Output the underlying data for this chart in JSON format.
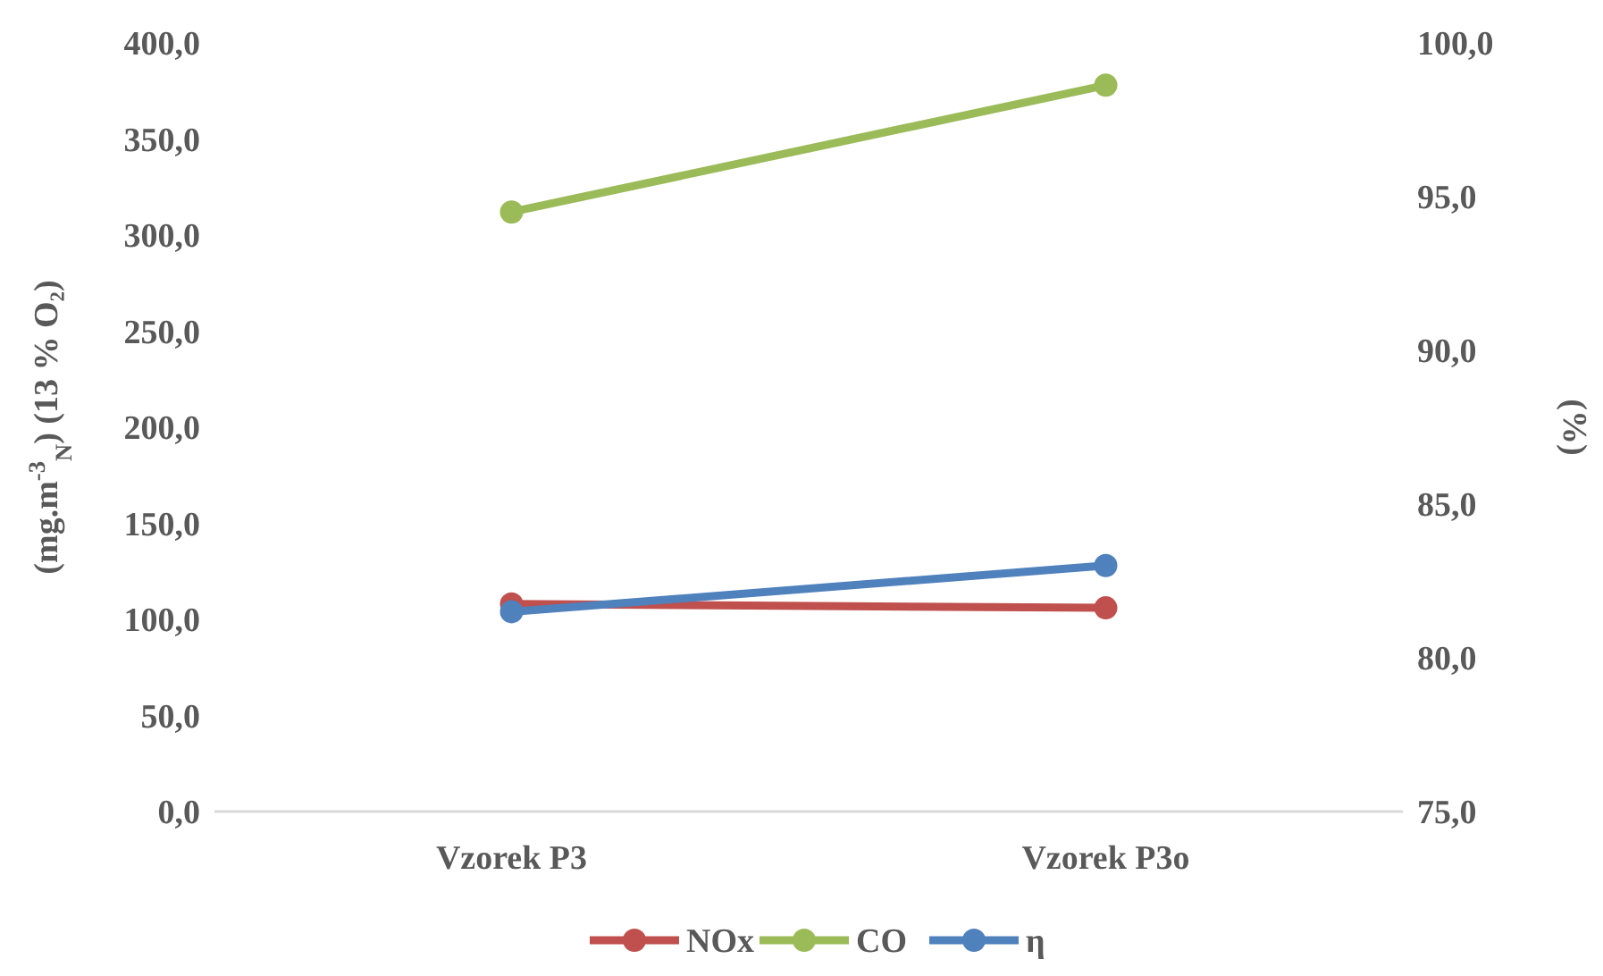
{
  "chart_data": {
    "type": "line",
    "categories": [
      "Vzorek P3",
      "Vzorek P3o"
    ],
    "ylabel": "(mg.m$^{-3}$$_{N}$) (13 % O₂)",
    "y2label": "(%)",
    "series": [
      {
        "name": "NOx",
        "color": "#c0504d",
        "values": [
          108,
          106
        ]
      },
      {
        "name": "CO",
        "color": "#9bbb59",
        "values": [
          312,
          378
        ]
      },
      {
        "name": "η",
        "color": "#4f81bd",
        "values": [
          81.5,
          83.0
        ],
        "axis": "y2"
      }
    ],
    "ylim": [
      0,
      400
    ],
    "yticks": [
      {
        "value": 0,
        "label": "0,0"
      },
      {
        "value": 50,
        "label": "50,0"
      },
      {
        "value": 100,
        "label": "100,0"
      },
      {
        "value": 150,
        "label": "150,0"
      },
      {
        "value": 200,
        "label": "200,0"
      },
      {
        "value": 250,
        "label": "250,0"
      },
      {
        "value": 300,
        "label": "300,0"
      },
      {
        "value": 350,
        "label": "350,0"
      },
      {
        "value": 400,
        "label": "400,0"
      }
    ],
    "y2lim": [
      75,
      100
    ],
    "y2ticks": [
      {
        "value": 75,
        "label": "75,0"
      },
      {
        "value": 80,
        "label": "80,0"
      },
      {
        "value": 85,
        "label": "85,0"
      },
      {
        "value": 90,
        "label": "90,0"
      },
      {
        "value": 95,
        "label": "95,0"
      },
      {
        "value": 100,
        "label": "100,0"
      }
    ],
    "marker": "circle",
    "line_style": "solid",
    "legend": "bottom",
    "grid": false
  }
}
